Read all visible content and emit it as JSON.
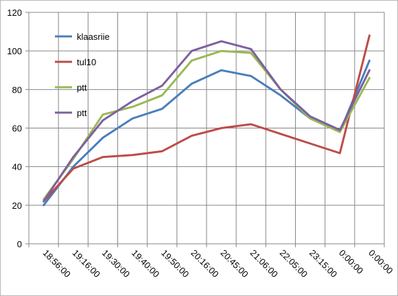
{
  "chart_data": {
    "type": "line",
    "title": "",
    "xlabel": "",
    "ylabel": "",
    "categories": [
      "18:56:00",
      "19:16:00",
      "19:30:00",
      "19:40:00",
      "19:50:00",
      "20:16:00",
      "20:45:00",
      "21:06:00",
      "22:05:00",
      "23:15:00",
      "0:00:00",
      "0:00:00"
    ],
    "yticks": [
      "0",
      "20",
      "40",
      "60",
      "80",
      "100",
      "120"
    ],
    "ylim": [
      0,
      120
    ],
    "grid": true,
    "legend_position": "top-left",
    "series": [
      {
        "name": "klaasriie",
        "color": "#4a7ebb",
        "values": [
          20,
          40,
          55,
          65,
          70,
          83,
          90,
          87,
          77,
          65,
          58,
          95
        ]
      },
      {
        "name": "tul10",
        "color": "#be4b48",
        "values": [
          22,
          39,
          45,
          46,
          48,
          56,
          60,
          62,
          57,
          52,
          47,
          108
        ]
      },
      {
        "name": "ptt",
        "color": "#98b954",
        "values": [
          23,
          44,
          67,
          71,
          77,
          95,
          100,
          99,
          80,
          65,
          58,
          86
        ]
      },
      {
        "name": "ptt",
        "color": "#7d60a0",
        "values": [
          22,
          45,
          64,
          74,
          82,
          100,
          105,
          101,
          80,
          66,
          59,
          90
        ]
      }
    ]
  }
}
